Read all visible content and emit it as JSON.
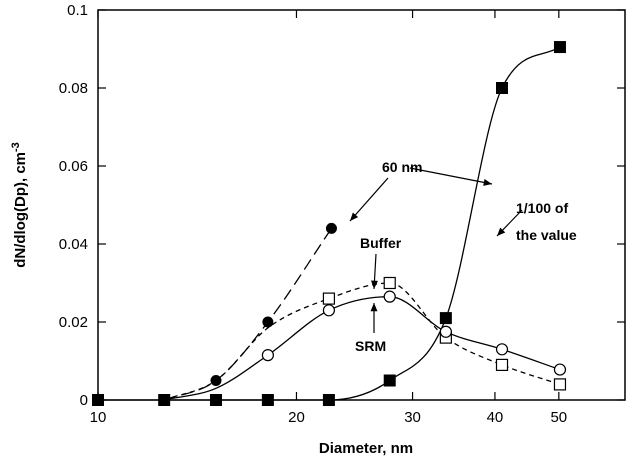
{
  "chart_data": {
    "type": "scatter",
    "title": "",
    "xlabel": "Diameter, nm",
    "ylabel": "dN/dlog(Dp), cm",
    "ylabel_superscript": "-3",
    "x_scale": "log",
    "xlim": [
      10,
      63
    ],
    "ylim": [
      0,
      0.1
    ],
    "x_ticks": [
      10,
      20,
      30,
      40,
      50
    ],
    "x_tick_labels": [
      "10",
      "20",
      "30",
      "40",
      "50"
    ],
    "y_ticks": [
      0,
      0.02,
      0.04,
      0.06,
      0.08,
      0.1
    ],
    "y_tick_labels": [
      "0",
      "0.02",
      "0.04",
      "0.06",
      "0.08",
      "0.1"
    ],
    "grid": false,
    "legend": "none",
    "series": [
      {
        "marker": "filled-circle",
        "line": "long-dash",
        "x": [
          15.1,
          18.1,
          22.6
        ],
        "y": [
          0.005,
          0.02,
          0.044
        ]
      },
      {
        "marker": "open-square",
        "line": "short-dash",
        "x": [
          22.4,
          27.7,
          33.7,
          41.0,
          50.2
        ],
        "y": [
          0.026,
          0.03,
          0.016,
          0.009,
          0.004
        ]
      },
      {
        "marker": "open-circle",
        "line": "solid",
        "x": [
          18.1,
          22.4,
          27.7,
          33.7,
          41.0,
          50.2
        ],
        "y": [
          0.0115,
          0.023,
          0.0265,
          0.0175,
          0.013,
          0.0078
        ]
      },
      {
        "marker": "filled-square",
        "line": "solid",
        "x": [
          10.0,
          12.6,
          15.1,
          18.1,
          22.4,
          27.7,
          33.7,
          41.0,
          50.2
        ],
        "y": [
          0,
          0,
          0,
          0,
          0,
          0.005,
          0.021,
          0.08,
          0.0905
        ]
      }
    ],
    "annotations": [
      {
        "text": "60 nm"
      },
      {
        "text": "Buffer"
      },
      {
        "text": "SRM"
      },
      {
        "text": "1/100 of"
      },
      {
        "text": "the value"
      }
    ]
  }
}
